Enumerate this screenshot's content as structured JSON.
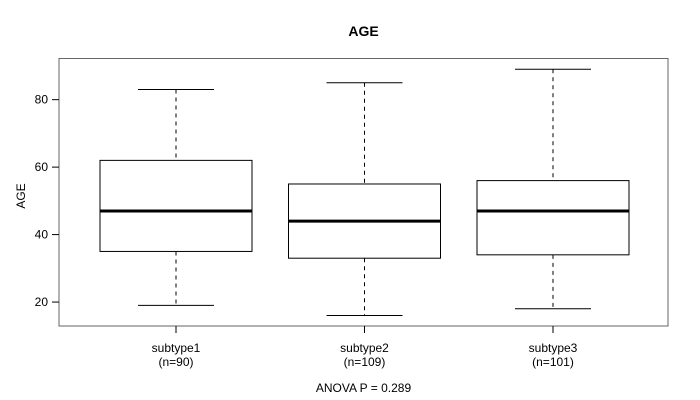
{
  "title": "AGE",
  "chart_data": {
    "type": "boxplot",
    "title": "AGE",
    "ylabel": "AGE",
    "annotation": "ANOVA P = 0.289",
    "grid": false,
    "yticks": [
      20,
      40,
      60,
      80
    ],
    "ylim": [
      12.9,
      92.2
    ],
    "groups": [
      {
        "label": "subtype1",
        "sublabel": "(n=90)",
        "n": 90,
        "whisker_low": 19,
        "q1": 35,
        "median": 47,
        "q3": 62,
        "whisker_high": 83
      },
      {
        "label": "subtype2",
        "sublabel": "(n=109)",
        "n": 109,
        "whisker_low": 16,
        "q1": 33,
        "median": 44,
        "q3": 55,
        "whisker_high": 85
      },
      {
        "label": "subtype3",
        "sublabel": "(n=101)",
        "n": 101,
        "whisker_low": 18,
        "q1": 34,
        "median": 47,
        "q3": 56,
        "whisker_high": 89
      }
    ]
  },
  "colors": {
    "line": "#000000",
    "frame": "#666666",
    "box_fill": "#ffffff",
    "background": "#ffffff",
    "text": "#000000"
  }
}
